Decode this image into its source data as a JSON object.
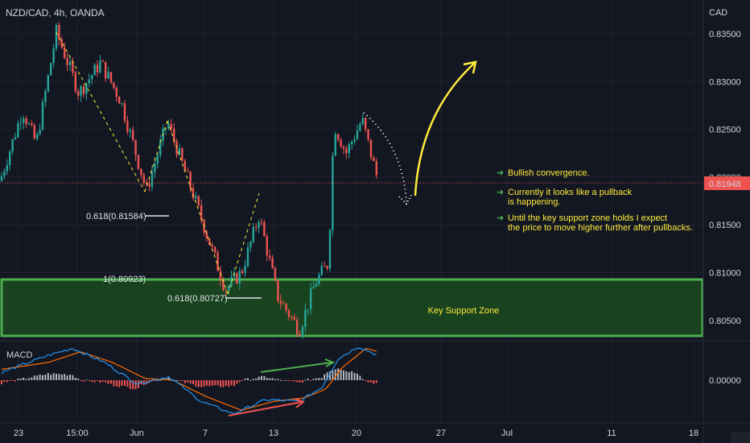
{
  "header": {
    "symbol_title": "NZD/CAD, 4h, OANDA",
    "currency_label": "CAD",
    "macd_label": "MACD"
  },
  "colors": {
    "background": "#131722",
    "bull": "#26a69a",
    "bear": "#ef5350",
    "zone_fill": "#1b4a1d",
    "zone_border": "#4caf50",
    "annotation_yellow": "#ffeb3b",
    "price_line": "#ef5350",
    "macd_line": "#2196f3",
    "signal_line": "#ff6d00"
  },
  "price_axis": {
    "ticks": [
      "0.83500",
      "0.83000",
      "0.82500",
      "0.82000",
      "0.81500",
      "0.81000",
      "0.80500"
    ],
    "current_price": "0.81948"
  },
  "macd_axis": {
    "tick": "0.00000"
  },
  "time_axis": {
    "labels": [
      "23",
      "15:00",
      "Jun",
      "7",
      "13",
      "20",
      "27",
      "Jul",
      "11",
      "18"
    ]
  },
  "annotations": {
    "fib_1": "0.618(0.81584)",
    "fib_2": "1(0.80923)",
    "fib_3": "0.618(0.80727)",
    "zone_label": "Key Support Zone",
    "notes": [
      {
        "lines": [
          "Bullish convergence."
        ]
      },
      {
        "lines": [
          "Currently it looks like a pullback",
          "is happening."
        ]
      },
      {
        "lines": [
          "Until the key support zone holds I expect",
          "the price to move higher further after pullbacks."
        ]
      }
    ]
  },
  "chart_data": {
    "type": "candlestick",
    "title": "NZD/CAD, 4h, OANDA",
    "ylabel": "CAD",
    "ylim": [
      0.8035,
      0.8375
    ],
    "support_zone": [
      0.8035,
      0.8093
    ],
    "current_price": 0.81948,
    "waypoints": [
      {
        "x": 0,
        "price": 0.8196
      },
      {
        "x": 28,
        "price": 0.827
      },
      {
        "x": 45,
        "price": 0.8235
      },
      {
        "x": 70,
        "price": 0.8352
      },
      {
        "x": 98,
        "price": 0.8288
      },
      {
        "x": 125,
        "price": 0.832
      },
      {
        "x": 150,
        "price": 0.828
      },
      {
        "x": 182,
        "price": 0.8186
      },
      {
        "x": 208,
        "price": 0.8258
      },
      {
        "x": 240,
        "price": 0.8182
      },
      {
        "x": 280,
        "price": 0.8083
      },
      {
        "x": 300,
        "price": 0.81
      },
      {
        "x": 322,
        "price": 0.816
      },
      {
        "x": 345,
        "price": 0.8075
      },
      {
        "x": 372,
        "price": 0.804
      },
      {
        "x": 392,
        "price": 0.809
      },
      {
        "x": 408,
        "price": 0.811
      },
      {
        "x": 415,
        "price": 0.8255
      },
      {
        "x": 430,
        "price": 0.8225
      },
      {
        "x": 450,
        "price": 0.826
      },
      {
        "x": 470,
        "price": 0.8195
      }
    ],
    "macd": {
      "zero": 0.0,
      "macd_waypoints": [
        {
          "x": 0,
          "v": 0.2
        },
        {
          "x": 60,
          "v": 0.7
        },
        {
          "x": 90,
          "v": 0.9
        },
        {
          "x": 130,
          "v": 0.5
        },
        {
          "x": 170,
          "v": -0.1
        },
        {
          "x": 210,
          "v": 0.1
        },
        {
          "x": 250,
          "v": -0.6
        },
        {
          "x": 290,
          "v": -0.95
        },
        {
          "x": 330,
          "v": -0.55
        },
        {
          "x": 372,
          "v": -0.6
        },
        {
          "x": 400,
          "v": -0.2
        },
        {
          "x": 420,
          "v": 0.6
        },
        {
          "x": 445,
          "v": 0.95
        },
        {
          "x": 470,
          "v": 0.7
        }
      ],
      "signal_waypoints": [
        {
          "x": 0,
          "v": 0.3
        },
        {
          "x": 60,
          "v": 0.5
        },
        {
          "x": 100,
          "v": 0.8
        },
        {
          "x": 140,
          "v": 0.5
        },
        {
          "x": 180,
          "v": 0.05
        },
        {
          "x": 215,
          "v": 0.0
        },
        {
          "x": 255,
          "v": -0.45
        },
        {
          "x": 300,
          "v": -0.85
        },
        {
          "x": 340,
          "v": -0.6
        },
        {
          "x": 378,
          "v": -0.5
        },
        {
          "x": 405,
          "v": -0.25
        },
        {
          "x": 425,
          "v": 0.35
        },
        {
          "x": 455,
          "v": 0.9
        },
        {
          "x": 470,
          "v": 0.8
        }
      ]
    }
  }
}
